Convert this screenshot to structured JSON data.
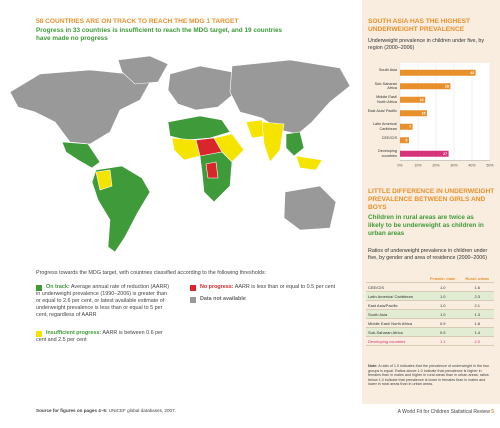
{
  "header": {
    "title": "58 COUNTRIES ARE ON TRACK TO REACH THE MDG 1 TARGET",
    "subtitle": "Progress in 33 countries is insufficient to reach the MDG target, and 19 countries have made no progress"
  },
  "legend": {
    "intro": "Progress towards the MDG target, with countries classified according to the following thresholds:",
    "items": [
      {
        "label": "On track:",
        "text": "Average annual rate of reduction (AARR) in underweight prevalence (1990–2006) is greater than or equal to 2.6 per cent, or latest available estimate of underweight prevalence is less than or equal to 5 per cent, regardless of AARR"
      },
      {
        "label": "Insufficient progress:",
        "text": "AARR is between 0.6 per cent and 2.5 per cent"
      },
      {
        "label": "No progress:",
        "text": "AARR is less than or equal to 0.5 per cent"
      },
      {
        "label": "Data not available"
      }
    ]
  },
  "chart_data": {
    "type": "bar",
    "orientation": "horizontal",
    "title": "SOUTH ASIA HAS THE HIGHEST UNDERWEIGHT PREVALENCE",
    "subtitle": "Underweight prevalence in children under five, by region (2000–2006)",
    "categories": [
      "South Asia",
      "Sub-Saharan Africa",
      "Middle East/ North Africa",
      "East Asia/ Pacific",
      "Latin America/ Caribbean",
      "CEE/CIS",
      "Developing countries"
    ],
    "values": [
      42,
      28,
      14,
      15,
      7,
      5,
      27
    ],
    "colors": [
      "#e8912c",
      "#e8912c",
      "#e8912c",
      "#e8912c",
      "#e8912c",
      "#e8912c",
      "#d6337a"
    ],
    "xlim": [
      0,
      50
    ],
    "xticks": [
      {
        "value": 0,
        "label": "0%"
      },
      {
        "value": 10,
        "label": "10%"
      },
      {
        "value": 20,
        "label": "20%"
      },
      {
        "value": 30,
        "label": "30%"
      },
      {
        "value": 40,
        "label": "40%"
      },
      {
        "value": 50,
        "label": "50%"
      }
    ],
    "grid": true
  },
  "table": {
    "title": "LITTLE DIFFERENCE IN UNDERWEIGHT PREVALENCE BETWEEN GIRLS AND BOYS",
    "subtitle": "Children in rural areas are twice as likely to be underweight as children in urban areas",
    "description": "Ratios of underweight prevalence in children under five, by gender and area of residence (2000–2006)",
    "columns": [
      "Female: male",
      "Rural: urban"
    ],
    "rows": [
      [
        "CEE/CIS",
        "1.0",
        "1.6"
      ],
      [
        "Latin America/ Caribbean",
        "1.0",
        "2.3"
      ],
      [
        "East Asia/Pacific",
        "1.0",
        "2.1"
      ],
      [
        "South Asia",
        "1.0",
        "1.3"
      ],
      [
        "Middle East/ North Africa",
        "0.9",
        "1.8"
      ],
      [
        "Sub-Saharan Africa",
        "0.9",
        "1.4"
      ],
      [
        "Developing countries",
        "1.1",
        "2.0"
      ]
    ]
  },
  "note": {
    "label": "Note:",
    "text": "A ratio of 1.0 indicates that the prevalence of underweight in the two groups is equal. Ratios above 1.0 indicate that prevalence is higher in females than in males and higher in rural areas than in urban areas; ratios below 1.0 indicate that prevalence is lower in females than in males and lower in rural areas than in urban areas."
  },
  "footer": {
    "source_label": "Source for figures on pages 4–5:",
    "source": "UNICEF global databases, 2007.",
    "publication": "A World Fit for Children Statistical Review",
    "page": "5"
  }
}
